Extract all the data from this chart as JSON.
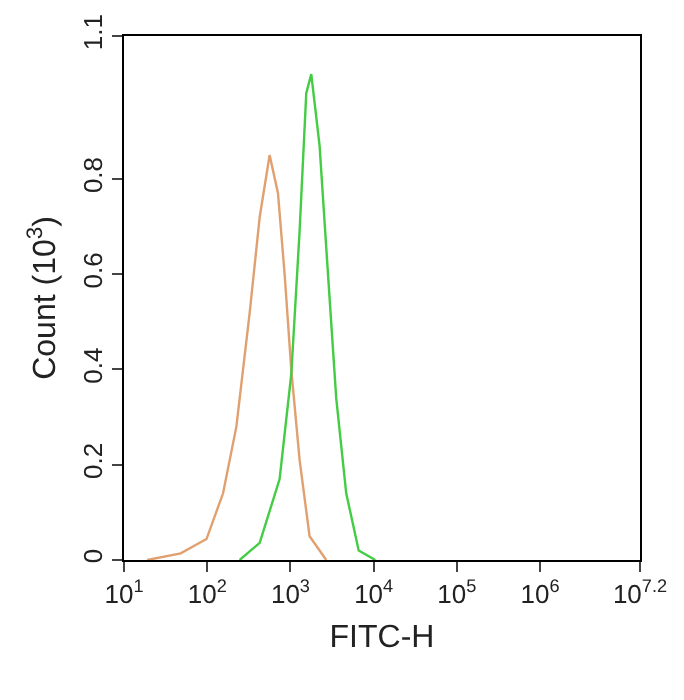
{
  "chart_data": {
    "type": "line",
    "xlabel": "FITC-H",
    "ylabel": "Count (10$^{3}$)",
    "log": "x",
    "grid": false,
    "marker": "none",
    "line_style": "solid",
    "xlim": [
      10,
      15848932
    ],
    "xticks": [
      {
        "value": 10,
        "label": "10$^{1}$"
      },
      {
        "value": 100,
        "label": "10$^{2}$"
      },
      {
        "value": 1000,
        "label": "10$^{3}$"
      },
      {
        "value": 10000,
        "label": "10$^{4}$"
      },
      {
        "value": 100000,
        "label": "10$^{5}$"
      },
      {
        "value": 1000000,
        "label": "10$^{6}$"
      },
      {
        "value": 15848932,
        "label": "10$^{7.2}$"
      }
    ],
    "ylim": [
      0,
      1.1
    ],
    "yticks": [
      0,
      0.2,
      0.4,
      0.6,
      0.8,
      1.1
    ],
    "series": [
      {
        "color": "#e0a070",
        "x": [
          19,
          48,
          98,
          155,
          224,
          324,
          427,
          562,
          708,
          851,
          1023,
          1288,
          1698,
          2692
        ],
        "values": [
          0,
          0.014,
          0.044,
          0.14,
          0.28,
          0.52,
          0.72,
          0.85,
          0.77,
          0.6,
          0.4,
          0.21,
          0.05,
          0
        ]
      },
      {
        "color": "#44cc44",
        "x": [
          245,
          427,
          741,
          1023,
          1288,
          1549,
          1778,
          2239,
          2754,
          3548,
          4677,
          6607,
          10471
        ],
        "values": [
          0,
          0.036,
          0.17,
          0.39,
          0.69,
          0.98,
          1.02,
          0.87,
          0.63,
          0.34,
          0.14,
          0.02,
          0
        ]
      }
    ]
  }
}
